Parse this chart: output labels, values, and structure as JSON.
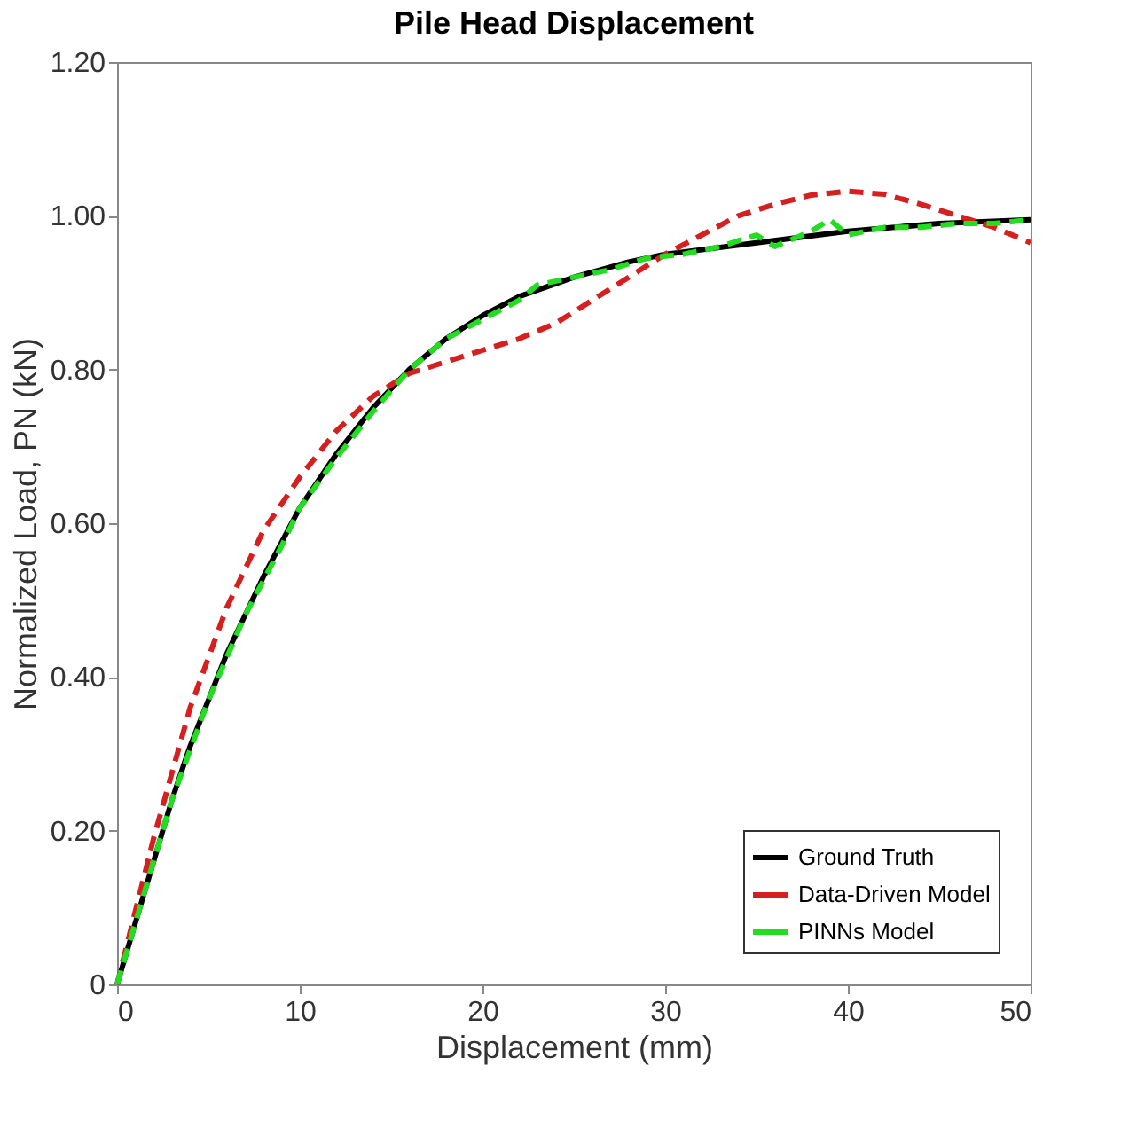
{
  "chart_data": {
    "type": "line",
    "title": "Pile Head Displacement",
    "xlabel": "Displacement (mm)",
    "ylabel": "Normalized Load, PN (kN)",
    "xlim": [
      0,
      50
    ],
    "xticks": [
      0,
      10,
      20,
      30,
      40,
      50
    ],
    "ylim": [
      0,
      1.2
    ],
    "yticks": [
      0,
      {
        "value": 0.2,
        "label": "0.20"
      },
      {
        "value": 0.4,
        "label": "0.40"
      },
      {
        "value": 0.6,
        "label": "0.60"
      },
      {
        "value": 0.8,
        "label": "0.80"
      },
      {
        "value": 1.0,
        "label": "1.00"
      },
      {
        "value": 1.2,
        "label": "1.20"
      }
    ],
    "grid": false,
    "legend": "bottom right",
    "marker": "none",
    "series": [
      {
        "name": "Ground Truth",
        "color": "#000000",
        "line_style": "solid",
        "x": [
          0,
          1,
          2,
          3,
          4,
          5,
          6,
          8,
          10,
          12,
          14,
          16,
          18,
          20,
          22,
          25,
          28,
          30,
          35,
          40,
          45,
          50
        ],
        "values": [
          0,
          0.08,
          0.16,
          0.24,
          0.31,
          0.37,
          0.43,
          0.53,
          0.62,
          0.69,
          0.75,
          0.8,
          0.84,
          0.87,
          0.895,
          0.92,
          0.94,
          0.95,
          0.965,
          0.98,
          0.99,
          0.995
        ]
      },
      {
        "name": "Data-Driven Model",
        "color": "#d62020",
        "line_style": "dashed",
        "x": [
          0,
          2,
          4,
          6,
          8,
          10,
          12,
          14,
          16,
          18,
          20,
          22,
          24,
          26,
          28,
          30,
          32,
          34,
          36,
          38,
          40,
          42,
          44,
          46,
          48,
          50
        ],
        "values": [
          0,
          0.19,
          0.36,
          0.49,
          0.59,
          0.66,
          0.72,
          0.765,
          0.795,
          0.81,
          0.825,
          0.84,
          0.86,
          0.89,
          0.92,
          0.95,
          0.975,
          1.0,
          1.015,
          1.027,
          1.032,
          1.028,
          1.015,
          1.0,
          0.985,
          0.965
        ]
      },
      {
        "name": "PINNs Model",
        "color": "#22dd22",
        "line_style": "dashed",
        "x": [
          0,
          1,
          2,
          3,
          5,
          7,
          9,
          10,
          12,
          14,
          16,
          18,
          20,
          22,
          23,
          25,
          27,
          29,
          31,
          33,
          35,
          36,
          38,
          39,
          40,
          42,
          44,
          46,
          48,
          50
        ],
        "values": [
          0,
          0.08,
          0.16,
          0.24,
          0.37,
          0.48,
          0.57,
          0.62,
          0.685,
          0.745,
          0.8,
          0.84,
          0.865,
          0.89,
          0.91,
          0.92,
          0.93,
          0.945,
          0.95,
          0.96,
          0.975,
          0.96,
          0.98,
          0.995,
          0.975,
          0.985,
          0.985,
          0.99,
          0.99,
          0.995
        ]
      }
    ]
  }
}
